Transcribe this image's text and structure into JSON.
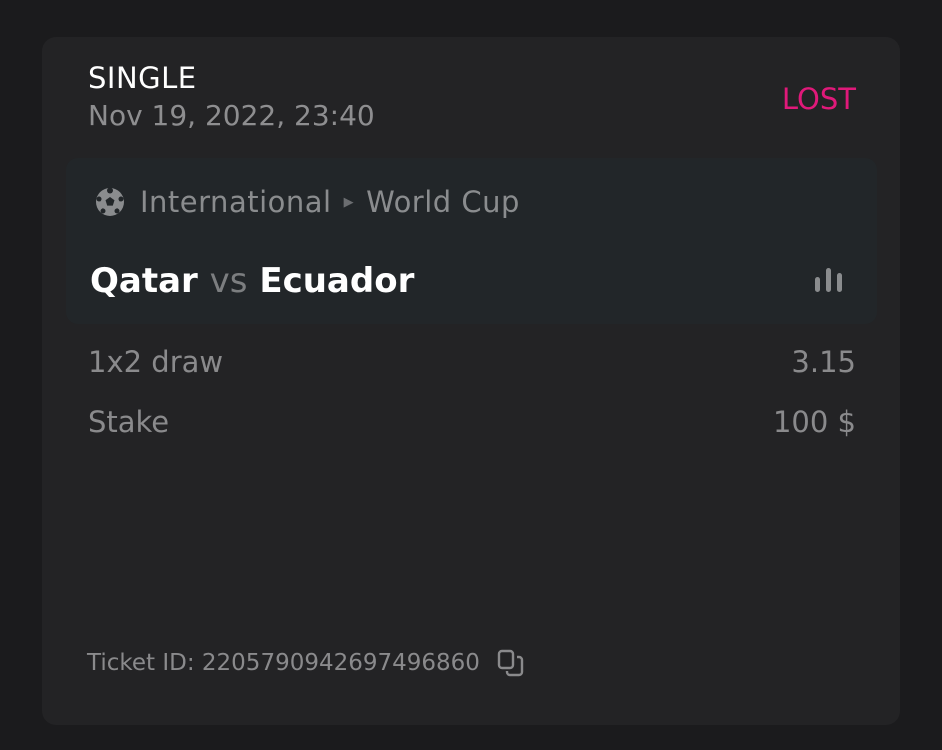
{
  "bet": {
    "type": "SINGLE",
    "datetime": "Nov 19, 2022, 23:40",
    "status": "LOST",
    "status_color": "#e0197a"
  },
  "event": {
    "sport_icon": "soccer-ball-icon",
    "category": "International",
    "tournament": "World Cup",
    "home": "Qatar",
    "vs": "vs",
    "away": "Ecuador",
    "stats_icon": "bar-chart-icon"
  },
  "selection": {
    "market": "1x2 draw",
    "odds": "3.15"
  },
  "stake": {
    "label": "Stake",
    "value": "100 $"
  },
  "ticket": {
    "label": "Ticket ID: 2205790942697496860",
    "copy_icon": "copy-icon"
  }
}
